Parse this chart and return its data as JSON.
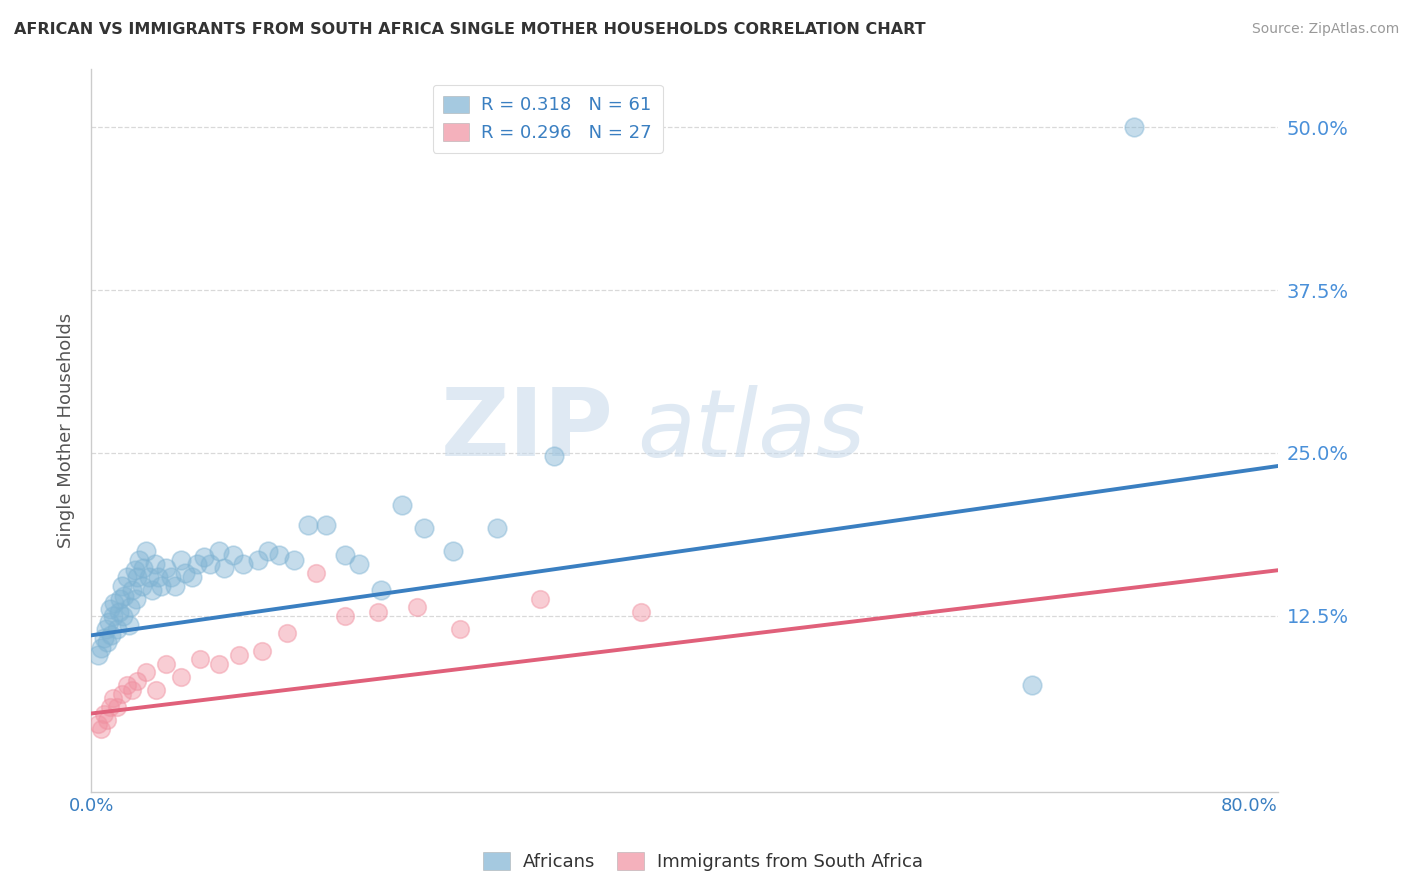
{
  "title": "AFRICAN VS IMMIGRANTS FROM SOUTH AFRICA SINGLE MOTHER HOUSEHOLDS CORRELATION CHART",
  "source": "Source: ZipAtlas.com",
  "ylabel": "Single Mother Households",
  "ytick_labels": [
    "12.5%",
    "25.0%",
    "37.5%",
    "50.0%"
  ],
  "ytick_values": [
    0.125,
    0.25,
    0.375,
    0.5
  ],
  "xlim": [
    0.0,
    0.82
  ],
  "ylim": [
    -0.01,
    0.545
  ],
  "legend_r1": "R = 0.318   N = 61",
  "legend_r2": "R = 0.296   N = 27",
  "africans_x": [
    0.005,
    0.007,
    0.009,
    0.01,
    0.011,
    0.012,
    0.013,
    0.014,
    0.015,
    0.016,
    0.018,
    0.019,
    0.02,
    0.021,
    0.022,
    0.023,
    0.025,
    0.026,
    0.027,
    0.028,
    0.03,
    0.031,
    0.032,
    0.033,
    0.035,
    0.036,
    0.038,
    0.04,
    0.042,
    0.044,
    0.046,
    0.048,
    0.052,
    0.055,
    0.058,
    0.062,
    0.065,
    0.07,
    0.073,
    0.078,
    0.082,
    0.088,
    0.092,
    0.098,
    0.105,
    0.115,
    0.122,
    0.13,
    0.14,
    0.15,
    0.162,
    0.175,
    0.185,
    0.2,
    0.215,
    0.23,
    0.25,
    0.28,
    0.32,
    0.65,
    0.72
  ],
  "africans_y": [
    0.095,
    0.1,
    0.108,
    0.115,
    0.105,
    0.12,
    0.13,
    0.11,
    0.125,
    0.135,
    0.115,
    0.128,
    0.138,
    0.148,
    0.125,
    0.14,
    0.155,
    0.118,
    0.132,
    0.145,
    0.16,
    0.138,
    0.155,
    0.168,
    0.148,
    0.162,
    0.175,
    0.155,
    0.145,
    0.165,
    0.155,
    0.148,
    0.162,
    0.155,
    0.148,
    0.168,
    0.158,
    0.155,
    0.165,
    0.17,
    0.165,
    0.175,
    0.162,
    0.172,
    0.165,
    0.168,
    0.175,
    0.172,
    0.168,
    0.195,
    0.195,
    0.172,
    0.165,
    0.145,
    0.21,
    0.192,
    0.175,
    0.192,
    0.248,
    0.072,
    0.5
  ],
  "immigrants_x": [
    0.005,
    0.007,
    0.009,
    0.011,
    0.013,
    0.015,
    0.018,
    0.021,
    0.025,
    0.028,
    0.032,
    0.038,
    0.045,
    0.052,
    0.062,
    0.075,
    0.088,
    0.102,
    0.118,
    0.135,
    0.155,
    0.175,
    0.198,
    0.225,
    0.255,
    0.31,
    0.38
  ],
  "immigrants_y": [
    0.042,
    0.038,
    0.05,
    0.045,
    0.055,
    0.062,
    0.055,
    0.065,
    0.072,
    0.068,
    0.075,
    0.082,
    0.068,
    0.088,
    0.078,
    0.092,
    0.088,
    0.095,
    0.098,
    0.112,
    0.158,
    0.125,
    0.128,
    0.132,
    0.115,
    0.138,
    0.128
  ],
  "african_line_x": [
    0.0,
    0.82
  ],
  "african_line_y": [
    0.11,
    0.24
  ],
  "immigrant_line_x": [
    0.0,
    0.82
  ],
  "immigrant_line_y": [
    0.05,
    0.16
  ],
  "dot_color_african": "#7fb3d3",
  "dot_color_immigrant": "#f090a0",
  "line_color_african": "#3a7fc1",
  "line_color_immigrant": "#e0607a",
  "watermark_zip": "ZIP",
  "watermark_atlas": "atlas",
  "background_color": "#ffffff",
  "grid_color": "#d0d0d0",
  "scatter_size_african": 180,
  "scatter_size_immigrant": 160
}
